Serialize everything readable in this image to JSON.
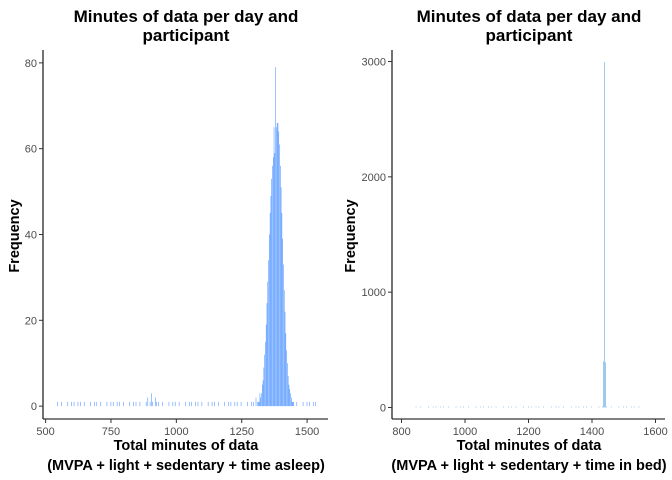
{
  "chart_data": [
    {
      "type": "histogram",
      "title_lines": [
        "Minutes of data per day and",
        "participant"
      ],
      "xlabel_lines": [
        "Total minutes of data",
        "(MVPA + light + sedentary + time asleep)"
      ],
      "ylabel": "Frequency",
      "xlim": [
        490,
        1580
      ],
      "ylim": [
        -3,
        83
      ],
      "xticks": [
        500,
        750,
        1000,
        1250,
        1500
      ],
      "yticks": [
        0,
        20,
        40,
        60,
        80
      ],
      "bin_width": 3,
      "bar_color": "#5b9bff",
      "grid": false,
      "legend": "none",
      "peaks": [
        {
          "x": 1380,
          "y": 79
        },
        {
          "x": 1374,
          "y": 65
        },
        {
          "x": 1386,
          "y": 60
        },
        {
          "x": 1365,
          "y": 41
        },
        {
          "x": 1392,
          "y": 31
        },
        {
          "x": 1355,
          "y": 20
        },
        {
          "x": 1400,
          "y": 13
        },
        {
          "x": 1345,
          "y": 9
        },
        {
          "x": 1410,
          "y": 5
        },
        {
          "x": 1335,
          "y": 4
        },
        {
          "x": 1320,
          "y": 3
        },
        {
          "x": 1305,
          "y": 2
        },
        {
          "x": 1425,
          "y": 2
        },
        {
          "x": 905,
          "y": 3
        },
        {
          "x": 890,
          "y": 2
        },
        {
          "x": 920,
          "y": 2
        }
      ],
      "sparse_range": [
        540,
        1545
      ]
    },
    {
      "type": "histogram",
      "title_lines": [
        "Minutes of data per day and",
        "participant"
      ],
      "xlabel_lines": [
        "Total minutes of data",
        "(MVPA + light + sedentary + time in bed)"
      ],
      "ylabel": "Frequency",
      "xlim": [
        770,
        1630
      ],
      "ylim": [
        -100,
        3100
      ],
      "xticks": [
        800,
        1000,
        1200,
        1400,
        1600
      ],
      "yticks": [
        0,
        1000,
        2000,
        3000
      ],
      "bin_width": 3,
      "bar_color": "#7fb8e8",
      "grid": false,
      "legend": "none",
      "peaks": [
        {
          "x": 1440,
          "y": 2995
        },
        {
          "x": 1437,
          "y": 20
        },
        {
          "x": 1443,
          "y": 15
        }
      ],
      "sparse_range": [
        840,
        1560
      ]
    }
  ]
}
